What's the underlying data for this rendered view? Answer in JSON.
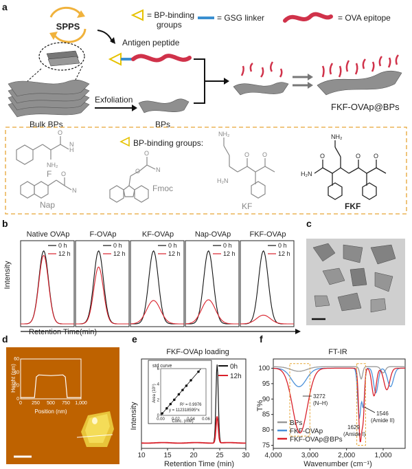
{
  "panel_labels": {
    "a": "a",
    "b": "b",
    "c": "c",
    "d": "d",
    "e": "e",
    "f": "f"
  },
  "panel_a": {
    "spps": "SPPS",
    "legend_binding": "= BP-binding",
    "legend_binding2": "groups",
    "legend_linker": "= GSG linker",
    "legend_epitope": "= OVA epitope",
    "antigen_peptide": "Antigen peptide",
    "exfoliation": "Exfoliation",
    "bulk_bps": "Bulk BPs",
    "bps": "BPs",
    "product": "FKF-OVAp@BPs",
    "binding_groups_title": "BP-binding groups:",
    "mol_F": "F",
    "mol_Nap": "Nap",
    "mol_Fmoc": "Fmoc",
    "mol_KF": "KF",
    "mol_FKF": "FKF",
    "nh2": "NH₂",
    "h2n": "H₂N",
    "o": "O",
    "h": "H",
    "n": "N"
  },
  "panel_b": {
    "ylabel": "Intensity",
    "xlabel": "Retention Time(min)",
    "legend": [
      "0 h",
      "12 h"
    ],
    "colors": {
      "0 h": "#111111",
      "12 h": "#d9202a"
    },
    "subpanels": [
      {
        "title": "Native OVAp",
        "peak_0h": 1.0,
        "peak_12h": 0.94
      },
      {
        "title": "F-OVAp",
        "peak_0h": 1.0,
        "peak_12h": 0.78
      },
      {
        "title": "KF-OVAp",
        "peak_0h": 1.0,
        "peak_12h": 0.32
      },
      {
        "title": "Nap-OVAp",
        "peak_0h": 1.0,
        "peak_12h": 0.33
      },
      {
        "title": "FKF-OVAp",
        "peak_0h": 1.0,
        "peak_12h": 0.12
      }
    ]
  },
  "panel_d": {
    "inset_ylabel": "Height (nm)",
    "inset_xlabel": "Position (nm)",
    "inset_xticks": [
      "0",
      "250",
      "500",
      "750",
      "1,000"
    ],
    "inset_yticks": [
      "0",
      "20",
      "40",
      "60"
    ]
  },
  "chart_data": [
    {
      "type": "line",
      "title": "FKF-OVAp loading",
      "xlabel": "Retention Time (min)",
      "ylabel": "Intensity",
      "xlim": [
        10,
        30
      ],
      "xticks": [
        "10",
        "15",
        "20",
        "25",
        "30"
      ],
      "legend": [
        "0h",
        "12h"
      ],
      "series": [
        {
          "name": "0h",
          "peak_x": 24.5,
          "peak_rel": 1.0
        },
        {
          "name": "12h",
          "peak_x": 24.5,
          "peak_rel": 0.34
        }
      ],
      "inset": {
        "title": "std curve",
        "xlabel": "Conc. (mM)",
        "ylabel": "Area (10⁶)",
        "xticks": [
          "0.00",
          "0.02",
          "0.04",
          "0.06"
        ],
        "yticks": [
          "0",
          "2",
          "4",
          "6"
        ],
        "r2": "R² = 0.9976",
        "fit": "y = 112318595*x",
        "x": [
          0.002,
          0.008,
          0.013,
          0.018,
          0.024,
          0.029,
          0.034,
          0.04,
          0.05
        ],
        "y": [
          0.25,
          0.9,
          1.45,
          2.0,
          2.7,
          3.25,
          3.8,
          4.5,
          5.6
        ]
      }
    },
    {
      "type": "line",
      "title": "FT-IR",
      "xlabel": "Wavenumber (cm⁻¹)",
      "ylabel": "T%",
      "xlim": [
        4000,
        400
      ],
      "ylim": [
        74,
        103
      ],
      "xticks": [
        "4,000",
        "3,000",
        "2,000",
        "1,000"
      ],
      "yticks": [
        "75",
        "80",
        "85",
        "90",
        "95",
        "100"
      ],
      "series": [
        {
          "name": "BPs",
          "color": "#999999"
        },
        {
          "name": "FKF-OVAp",
          "color": "#4a90d9"
        },
        {
          "name": "FKF-OVAp@BPs",
          "color": "#d9202a"
        }
      ],
      "annotations": [
        {
          "text": "3272",
          "text2": "(N–H)",
          "x": 3272
        },
        {
          "text": "1629",
          "text2": "(Amide I)",
          "x": 1629
        },
        {
          "text": "1546",
          "text2": "(Amide II)",
          "x": 1546
        }
      ]
    }
  ]
}
